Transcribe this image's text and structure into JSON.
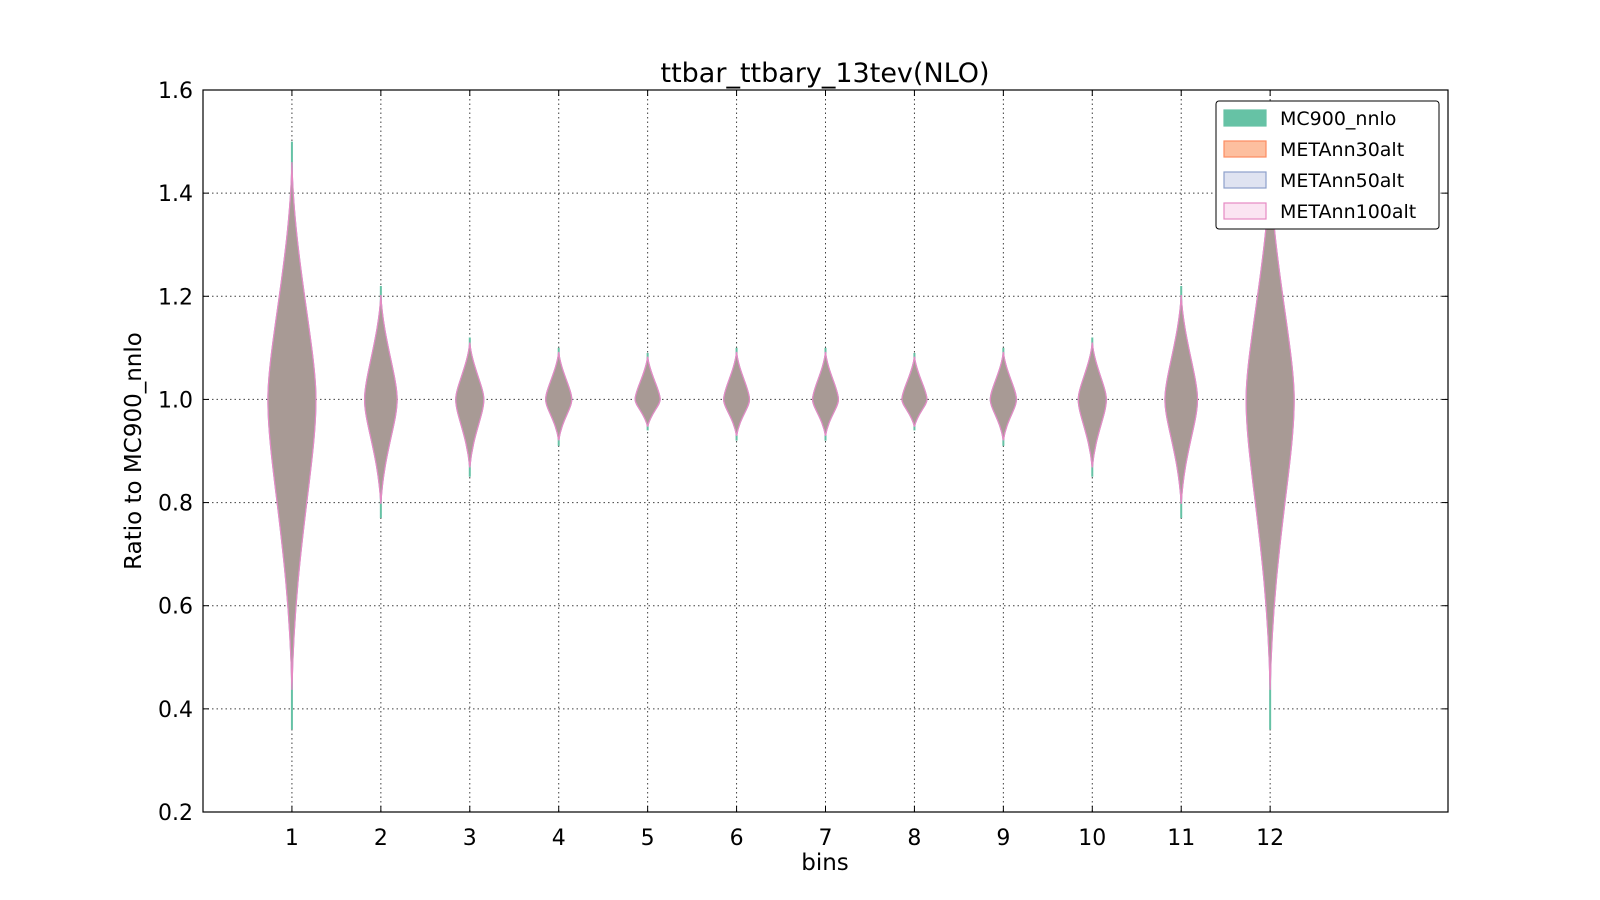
{
  "chart_data": {
    "type": "violin",
    "title": "ttbar_ttbary_13tev(NLO)",
    "xlabel": "bins",
    "ylabel": "Ratio to MC900_nnlo",
    "ylim": [
      0.2,
      1.6
    ],
    "xlim": [
      0,
      14
    ],
    "yticks": [
      "0.2",
      "0.4",
      "0.6",
      "0.8",
      "1.0",
      "1.2",
      "1.4",
      "1.6"
    ],
    "categories": [
      "1",
      "2",
      "3",
      "4",
      "5",
      "6",
      "7",
      "8",
      "9",
      "10",
      "11",
      "12"
    ],
    "grid": true,
    "legend_position": "top-right",
    "series": [
      {
        "name": "MC900_nnlo",
        "color": "#66c2a5"
      },
      {
        "name": "METAnn30alt",
        "color": "#fc8d62"
      },
      {
        "name": "METAnn50alt",
        "color": "#8da0cb"
      },
      {
        "name": "METAnn100alt",
        "color": "#e78ac3"
      }
    ],
    "violins": [
      {
        "bin": "1",
        "min": 0.36,
        "max": 1.5,
        "center": 1.0
      },
      {
        "bin": "2",
        "min": 0.77,
        "max": 1.22,
        "center": 1.0
      },
      {
        "bin": "3",
        "min": 0.85,
        "max": 1.12,
        "center": 1.0
      },
      {
        "bin": "4",
        "min": 0.91,
        "max": 1.1,
        "center": 1.0
      },
      {
        "bin": "5",
        "min": 0.94,
        "max": 1.09,
        "center": 1.0
      },
      {
        "bin": "6",
        "min": 0.92,
        "max": 1.1,
        "center": 1.0
      },
      {
        "bin": "7",
        "min": 0.92,
        "max": 1.1,
        "center": 1.0
      },
      {
        "bin": "8",
        "min": 0.94,
        "max": 1.09,
        "center": 1.0
      },
      {
        "bin": "9",
        "min": 0.91,
        "max": 1.1,
        "center": 1.0
      },
      {
        "bin": "10",
        "min": 0.85,
        "max": 1.12,
        "center": 1.0
      },
      {
        "bin": "11",
        "min": 0.77,
        "max": 1.22,
        "center": 1.0
      },
      {
        "bin": "12",
        "min": 0.36,
        "max": 1.5,
        "center": 1.0
      }
    ],
    "fill_color": "#a89a95"
  }
}
